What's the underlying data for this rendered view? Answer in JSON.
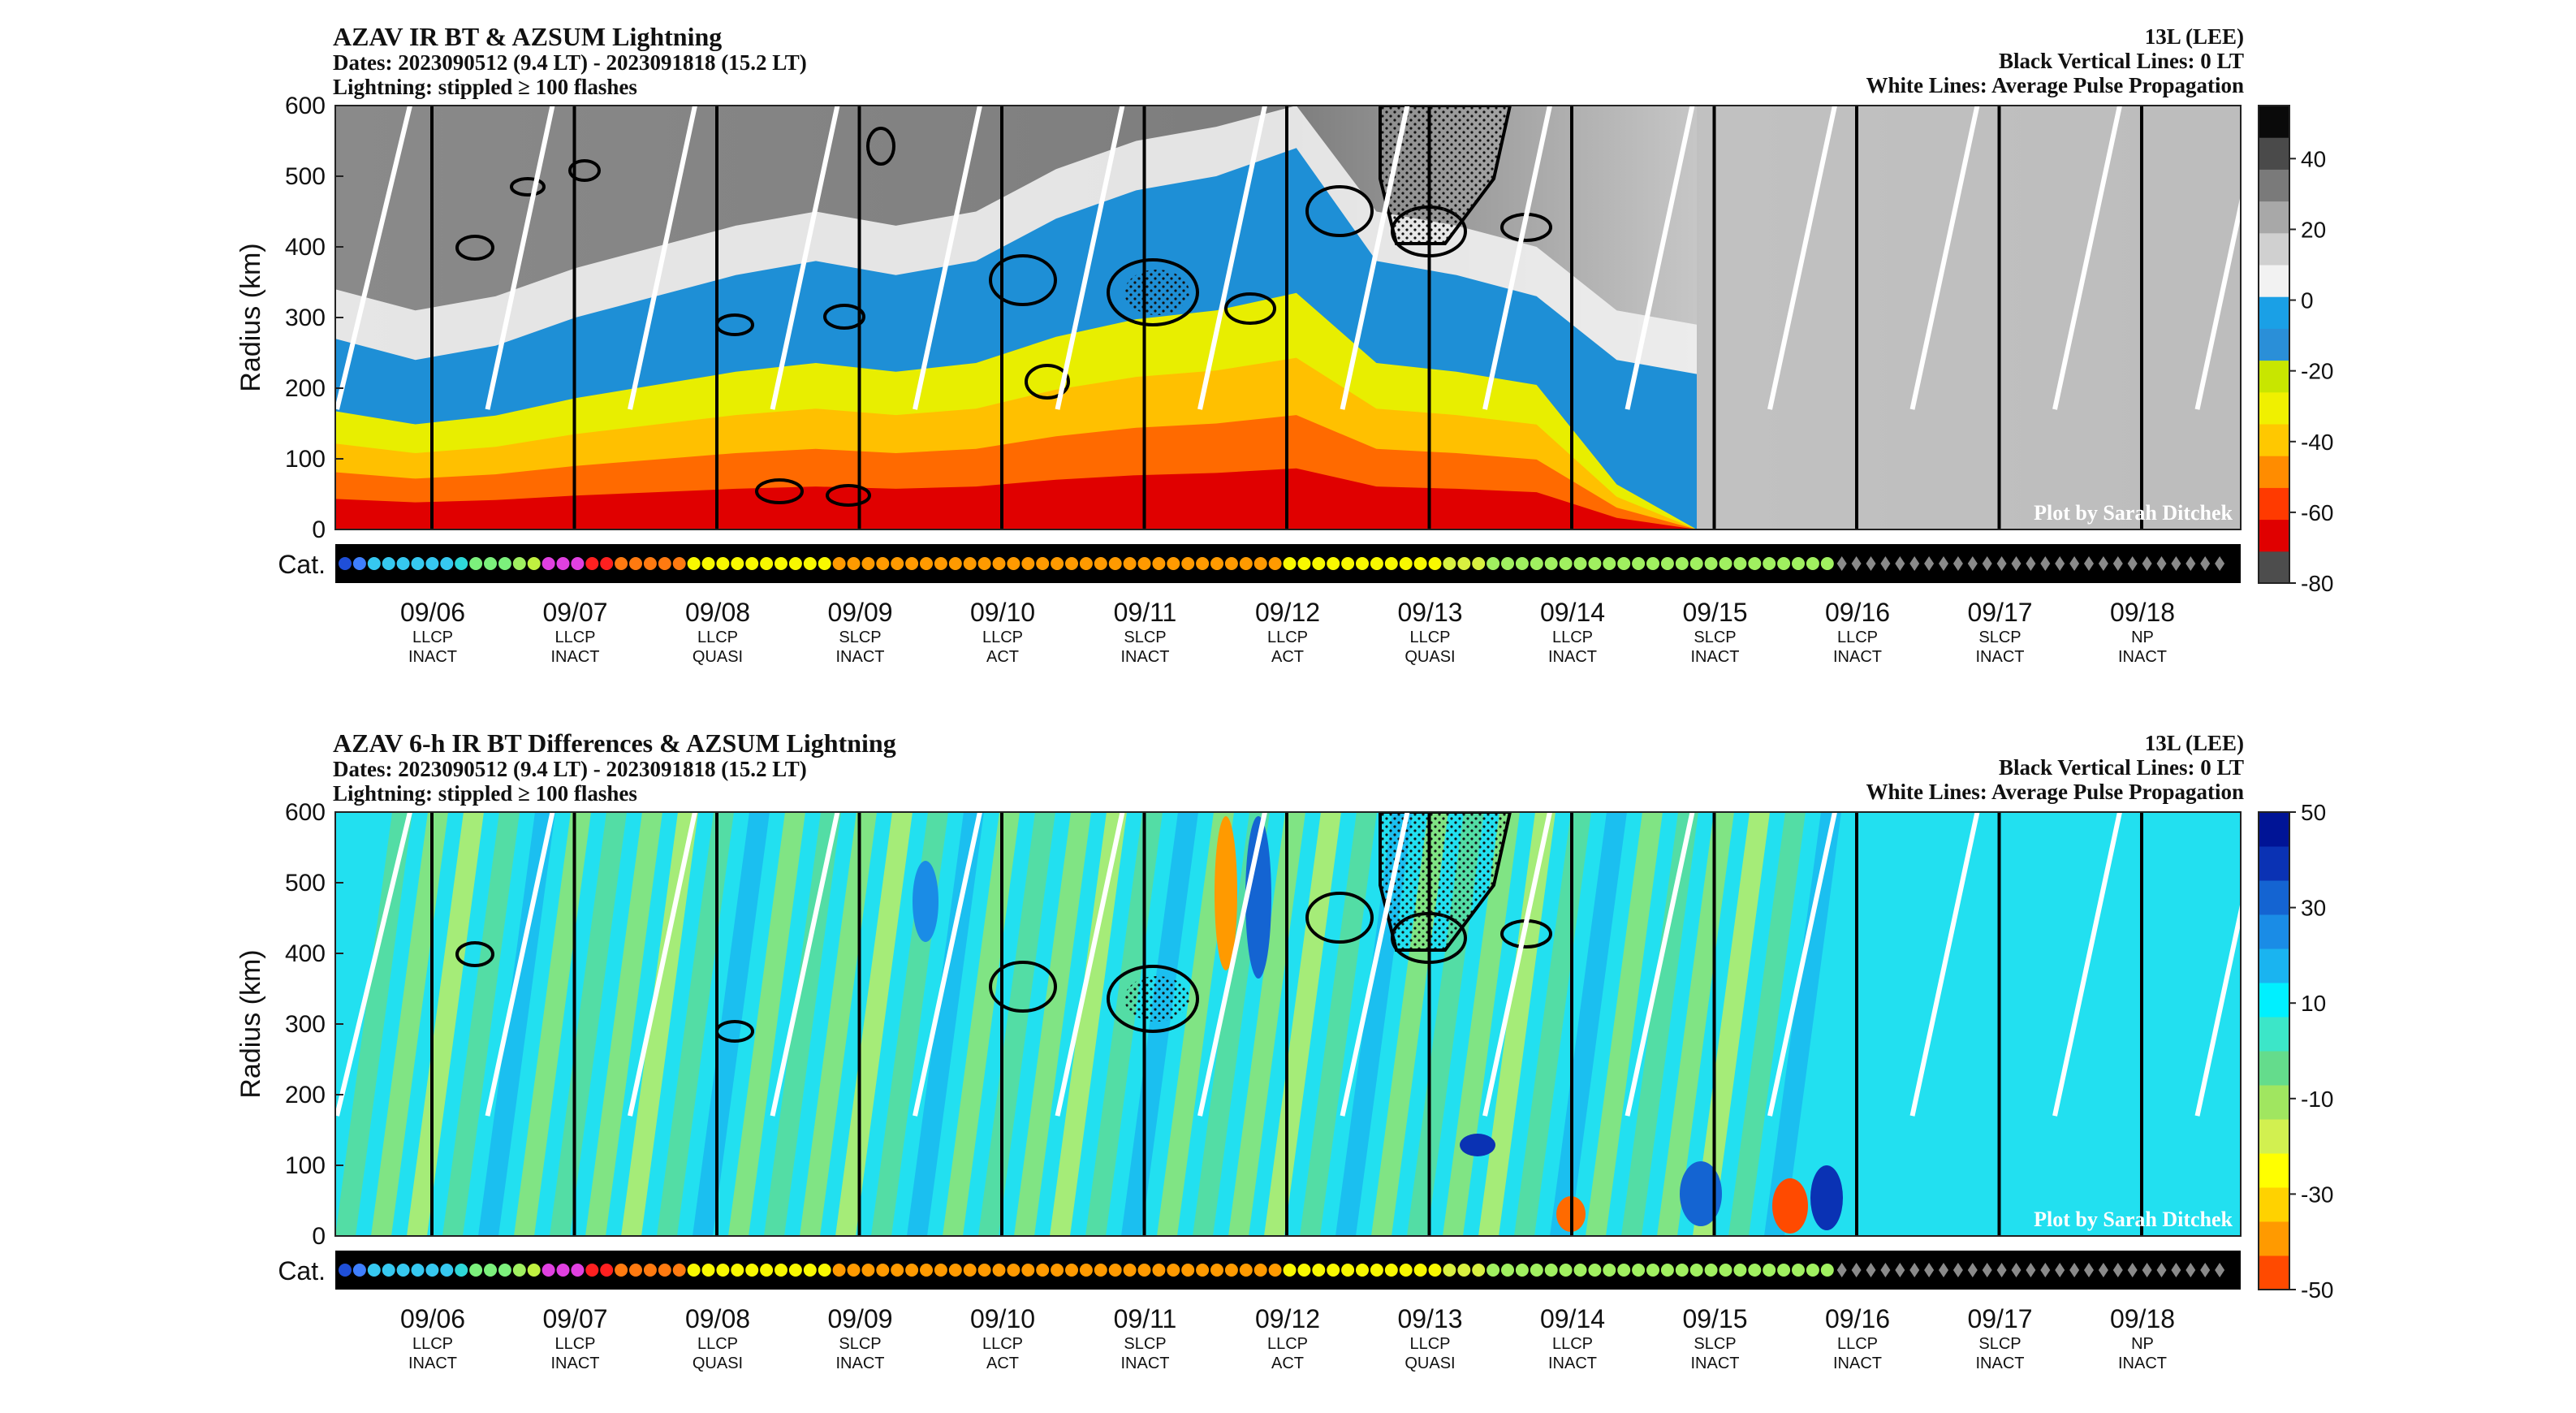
{
  "panels": [
    {
      "title": "AZAV IR BT & AZSUM Lightning",
      "dates": "Dates: 2023090512 (9.4 LT) - 2023091818 (15.2 LT)",
      "lightning": "Lightning: stippled ≥ 100 flashes",
      "storm": "13L (LEE)",
      "vlines_note": "Black Vertical Lines: 0 LT",
      "wlines_note": "White Lines: Average Pulse Propagation",
      "credit": "Plot by Sarah Ditchek"
    },
    {
      "title": "AZAV 6-h IR BT Differences & AZSUM Lightning",
      "dates": "Dates: 2023090512 (9.4 LT) - 2023091818 (15.2 LT)",
      "lightning": "Lightning: stippled ≥ 100 flashes",
      "storm": "13L (LEE)",
      "vlines_note": "Black Vertical Lines: 0 LT",
      "wlines_note": "White Lines: Average Pulse Propagation",
      "credit": "Plot by Sarah Ditchek"
    }
  ],
  "chart_data": [
    {
      "type": "heatmap",
      "title": "AZAV IR BT & AZSUM Lightning",
      "ylabel": "Radius (km)",
      "ylim": [
        0,
        600
      ],
      "yticks": [
        "0",
        "100",
        "200",
        "300",
        "400",
        "500",
        "600"
      ],
      "catlabel": "Cat.",
      "colorbar_ticks": [
        "40",
        "20",
        "0",
        "-20",
        "-40",
        "-60",
        "-80"
      ],
      "colorbar_range": [
        -80,
        55
      ],
      "colormap": [
        "#4d4d4d",
        "#e00000",
        "#ff3a00",
        "#ff8c00",
        "#ffc800",
        "#f0f000",
        "#c8e600",
        "#2a8fd8",
        "#1aa0e6",
        "#f2f2f2",
        "#d0d0d0",
        "#a8a8a8",
        "#7a7a7a",
        "#4a4a4a",
        "#0a0a0a"
      ],
      "days": [
        {
          "date": "09/06",
          "structure": "LLCP",
          "phase": "INACT"
        },
        {
          "date": "09/07",
          "structure": "LLCP",
          "phase": "INACT"
        },
        {
          "date": "09/08",
          "structure": "LLCP",
          "phase": "QUASI"
        },
        {
          "date": "09/09",
          "structure": "SLCP",
          "phase": "INACT"
        },
        {
          "date": "09/10",
          "structure": "LLCP",
          "phase": "ACT"
        },
        {
          "date": "09/11",
          "structure": "SLCP",
          "phase": "INACT"
        },
        {
          "date": "09/12",
          "structure": "LLCP",
          "phase": "ACT"
        },
        {
          "date": "09/13",
          "structure": "LLCP",
          "phase": "QUASI"
        },
        {
          "date": "09/14",
          "structure": "LLCP",
          "phase": "INACT"
        },
        {
          "date": "09/15",
          "structure": "SLCP",
          "phase": "INACT"
        },
        {
          "date": "09/16",
          "structure": "LLCP",
          "phase": "INACT"
        },
        {
          "date": "09/17",
          "structure": "SLCP",
          "phase": "INACT"
        },
        {
          "date": "09/18",
          "structure": "NP",
          "phase": "INACT"
        }
      ],
      "cold_cloud_top_edge_km": [
        270,
        240,
        260,
        300,
        330,
        360,
        380,
        360,
        380,
        440,
        480,
        500,
        540,
        380,
        360,
        330,
        240,
        220
      ],
      "cat_colors": [
        "#1f4fd8",
        "#3f7fff",
        "#36c8f0",
        "#36c8f0",
        "#36c8f0",
        "#36c8f0",
        "#36c8f0",
        "#36c8f0",
        "#2ed8d8",
        "#7cf07c",
        "#7cf07c",
        "#7cf07c",
        "#a0f060",
        "#c0f040",
        "#e040e0",
        "#e040e0",
        "#e040e0",
        "#ff2020",
        "#ff2020",
        "#ff7a10",
        "#ff7a10",
        "#ff7a10",
        "#ff7a10",
        "#ff7a10",
        "#f8f800",
        "#f8f800",
        "#f8f800",
        "#f8f800",
        "#f8f800",
        "#f8f800",
        "#f8f800",
        "#f8f800",
        "#f8f800",
        "#f8f800",
        "#ff9a00",
        "#ff9a00",
        "#ff9a00",
        "#ff9a00",
        "#ff9a00",
        "#ff9a00",
        "#ff9a00",
        "#ff9a00",
        "#ff9a00",
        "#ff9a00",
        "#ff9a00",
        "#ff9a00",
        "#ff9a00",
        "#ff9a00",
        "#ff9a00",
        "#ff9a00",
        "#ff9a00",
        "#ff9a00",
        "#ff9a00",
        "#ff9a00",
        "#ff9a00",
        "#ff9a00",
        "#ff9a00",
        "#ff9a00",
        "#ff9a00",
        "#ff9a00",
        "#ff9a00",
        "#ff9a00",
        "#ff9a00",
        "#ff9a00",
        "#ff9a00",
        "#f8f800",
        "#f8f800",
        "#f8f800",
        "#f8f800",
        "#f8f800",
        "#f8f800",
        "#f8f800",
        "#f8f800",
        "#f8f800",
        "#f8f800",
        "#f8f800",
        "#d8f040",
        "#d8f040",
        "#d8f040",
        "#a0f060",
        "#a0f060",
        "#a0f060",
        "#a0f060",
        "#a0f060",
        "#a0f060",
        "#a0f060",
        "#a0f060",
        "#a0f060",
        "#a0f060",
        "#a0f060",
        "#a0f060",
        "#a0f060",
        "#a0f060",
        "#a0f060",
        "#a0f060",
        "#a0f060",
        "#a0f060",
        "#a0f060",
        "#a0f060",
        "#a0f060",
        "#a0f060",
        "#a0f060",
        "#a0f060"
      ],
      "cat_diamonds": 27
    },
    {
      "type": "heatmap",
      "title": "AZAV 6-h IR BT Differences & AZSUM Lightning",
      "ylabel": "Radius (km)",
      "ylim": [
        0,
        600
      ],
      "yticks": [
        "0",
        "100",
        "200",
        "300",
        "400",
        "500",
        "600"
      ],
      "catlabel": "Cat.",
      "colorbar_ticks": [
        "50",
        "30",
        "10",
        "-10",
        "-30",
        "-50"
      ],
      "colorbar_range": [
        -50,
        50
      ],
      "colormap": [
        "#ff4a00",
        "#ff9a00",
        "#ffd200",
        "#ffff00",
        "#d2f050",
        "#a0e660",
        "#64dc8c",
        "#3ce6c8",
        "#00f0ff",
        "#1ab4f0",
        "#1a8ce6",
        "#1464d2",
        "#0a32b4",
        "#001496"
      ],
      "days": [
        {
          "date": "09/06",
          "structure": "LLCP",
          "phase": "INACT"
        },
        {
          "date": "09/07",
          "structure": "LLCP",
          "phase": "INACT"
        },
        {
          "date": "09/08",
          "structure": "LLCP",
          "phase": "QUASI"
        },
        {
          "date": "09/09",
          "structure": "SLCP",
          "phase": "INACT"
        },
        {
          "date": "09/10",
          "structure": "LLCP",
          "phase": "ACT"
        },
        {
          "date": "09/11",
          "structure": "SLCP",
          "phase": "INACT"
        },
        {
          "date": "09/12",
          "structure": "LLCP",
          "phase": "ACT"
        },
        {
          "date": "09/13",
          "structure": "LLCP",
          "phase": "QUASI"
        },
        {
          "date": "09/14",
          "structure": "LLCP",
          "phase": "INACT"
        },
        {
          "date": "09/15",
          "structure": "SLCP",
          "phase": "INACT"
        },
        {
          "date": "09/16",
          "structure": "LLCP",
          "phase": "INACT"
        },
        {
          "date": "09/17",
          "structure": "SLCP",
          "phase": "INACT"
        },
        {
          "date": "09/18",
          "structure": "NP",
          "phase": "INACT"
        }
      ],
      "cat_same_as_panel": 0
    }
  ]
}
